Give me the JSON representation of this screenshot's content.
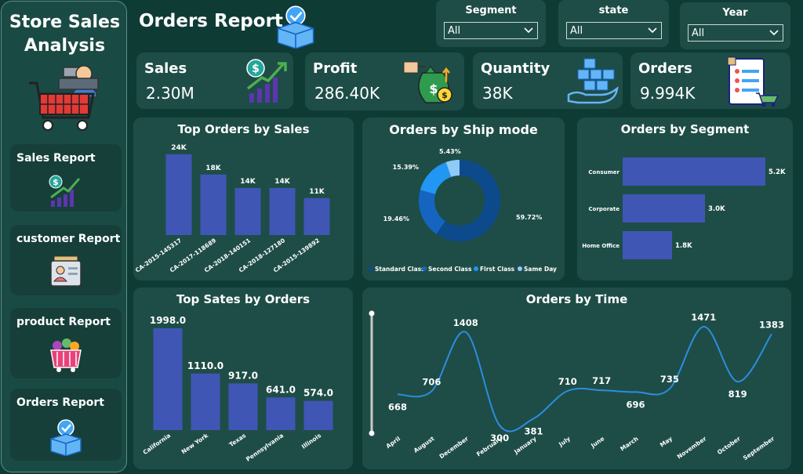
{
  "sidebar": {
    "title_line1": "Store Sales",
    "title_line2": "Analysis",
    "nav": [
      {
        "label": "Sales Report"
      },
      {
        "label": "customer Report"
      },
      {
        "label": "product Report"
      },
      {
        "label": "Orders Report"
      }
    ]
  },
  "header": {
    "title": "Orders Report"
  },
  "slicers": [
    {
      "label": "Segment",
      "value": "All"
    },
    {
      "label": "state",
      "value": "All"
    },
    {
      "label": "Year",
      "value": "All"
    }
  ],
  "kpis": [
    {
      "label": "Sales",
      "value": "2.30M"
    },
    {
      "label": "Profit",
      "value": "286.40K"
    },
    {
      "label": "Quantity",
      "value": "38K"
    },
    {
      "label": "Orders",
      "value": "9.994K"
    }
  ],
  "colors": {
    "bar": "#3f56b5",
    "line": "#2b8de0",
    "donut": [
      "#0d4a8c",
      "#1565c0",
      "#2196f3",
      "#90caf9"
    ]
  },
  "chart_data": [
    {
      "type": "bar",
      "title": "Top Orders by Sales",
      "categories": [
        "CA-2015-145317",
        "CA-2017-118689",
        "CA-2018-140151",
        "CA-2018-127180",
        "CA-2015-139892"
      ],
      "values": [
        24,
        18,
        14,
        14,
        11
      ],
      "labels": [
        "24K",
        "18K",
        "14K",
        "14K",
        "11K"
      ]
    },
    {
      "type": "pie",
      "title": "Orders by Ship mode",
      "categories": [
        "Standard Class",
        "Second Class",
        "First Class",
        "Same Day"
      ],
      "values": [
        59.72,
        19.46,
        15.39,
        5.43
      ],
      "labels": [
        "59.72%",
        "19.46%",
        "15.39%",
        "5.43%"
      ]
    },
    {
      "type": "bar",
      "orientation": "horizontal",
      "title": "Orders by Segment",
      "categories": [
        "Consumer",
        "Corporate",
        "Home Office"
      ],
      "values": [
        5.2,
        3.0,
        1.8
      ],
      "labels": [
        "5.2K",
        "3.0K",
        "1.8K"
      ]
    },
    {
      "type": "bar",
      "title": "Top Sates by Orders",
      "categories": [
        "California",
        "New York",
        "Texas",
        "Pennsylvania",
        "Illinois"
      ],
      "values": [
        1998.0,
        1110.0,
        917.0,
        641.0,
        574.0
      ],
      "labels": [
        "1998.0",
        "1110.0",
        "917.0",
        "641.0",
        "574.0"
      ]
    },
    {
      "type": "line",
      "title": "Orders by Time",
      "categories": [
        "April",
        "August",
        "December",
        "February",
        "January",
        "July",
        "June",
        "March",
        "May",
        "November",
        "October",
        "September"
      ],
      "values": [
        668,
        706,
        1408,
        300,
        381,
        710,
        717,
        696,
        735,
        1471,
        819,
        1383
      ],
      "labels": [
        "668",
        "706",
        "1408",
        "300",
        "381",
        "710",
        "717",
        "696",
        "735",
        "1471",
        "819",
        "1383"
      ]
    }
  ]
}
